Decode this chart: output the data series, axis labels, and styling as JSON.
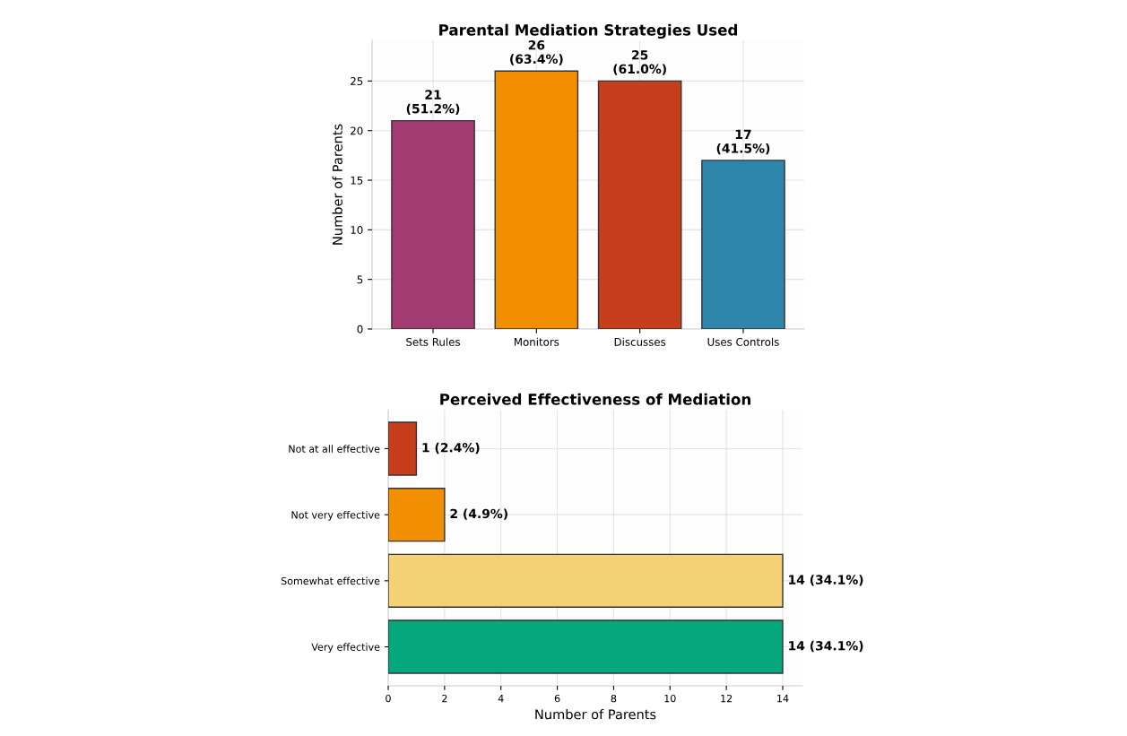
{
  "chart_data": [
    {
      "type": "bar",
      "title": "Parental Mediation Strategies Used",
      "ylabel": "Number of Parents",
      "categories": [
        "Sets Rules",
        "Monitors",
        "Discusses",
        "Uses Controls"
      ],
      "values": [
        21,
        26,
        25,
        17
      ],
      "colors": [
        "#a23b72",
        "#f18f01",
        "#c73e1d",
        "#2e86ab"
      ],
      "value_labels": [
        "21\n(51.2%)",
        "26\n(63.4%)",
        "25\n(61.0%)",
        "17\n(41.5%)"
      ],
      "ylim": [
        0,
        29.1
      ],
      "yticks": [
        0,
        5,
        10,
        15,
        20,
        25
      ],
      "grid": true,
      "legend": false
    },
    {
      "type": "bar",
      "orientation": "horizontal",
      "title": "Perceived Effectiveness of Mediation",
      "xlabel": "Number of Parents",
      "categories": [
        "Not at all effective",
        "Not very effective",
        "Somewhat effective",
        "Very effective"
      ],
      "values": [
        1,
        2,
        14,
        14
      ],
      "colors": [
        "#c73e1d",
        "#f18f01",
        "#f3d174",
        "#06a77d"
      ],
      "value_labels": [
        "1 (2.4%)",
        "2 (4.9%)",
        "14 (34.1%)",
        "14 (34.1%)"
      ],
      "xlim": [
        0,
        14.7
      ],
      "xticks": [
        0,
        2,
        4,
        6,
        8,
        10,
        12,
        14
      ],
      "grid": true,
      "legend": false
    }
  ]
}
